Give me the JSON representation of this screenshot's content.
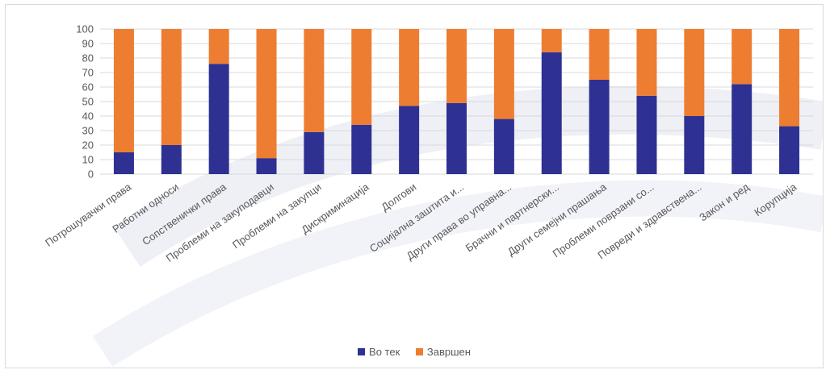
{
  "chart_data": {
    "type": "bar",
    "stacked": true,
    "categories": [
      "Потрошувачки права",
      "Работни односи",
      "Сопственички права",
      "Проблеми на закуподавци",
      "Проблеми на закупци",
      "Дискриминација",
      "Долгови",
      "Социјална заштита и...",
      "Други права во управна...",
      "Брачни и партнерски...",
      "Други семејни прашања",
      "Проблеми поврзани со...",
      "Повреди и здравствена...",
      "Закон и ред",
      "Корупција"
    ],
    "series": [
      {
        "name": "Во тек",
        "color": "#2e3192",
        "values": [
          15,
          20,
          76,
          11,
          29,
          34,
          47,
          49,
          38,
          84,
          65,
          54,
          40,
          62,
          33
        ]
      },
      {
        "name": "Завршен",
        "color": "#ed7d31",
        "values": [
          85,
          80,
          24,
          89,
          71,
          66,
          53,
          51,
          62,
          16,
          35,
          46,
          60,
          38,
          67
        ]
      }
    ],
    "ylim": [
      0,
      100
    ],
    "yticks": [
      0,
      10,
      20,
      30,
      40,
      50,
      60,
      70,
      80,
      90,
      100
    ],
    "grid": true,
    "legend": "bottom"
  }
}
